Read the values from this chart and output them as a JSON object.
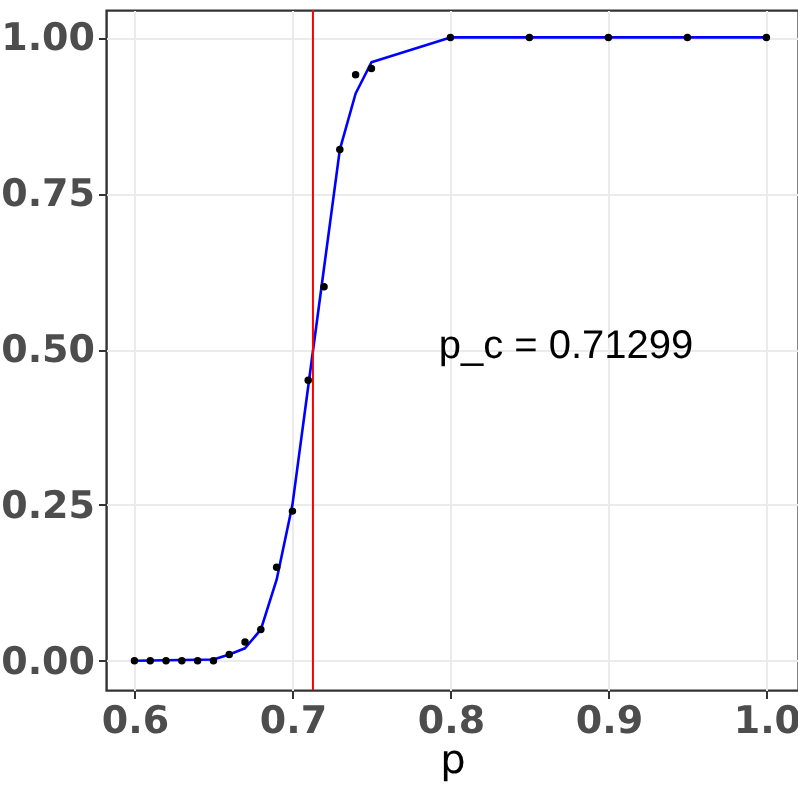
{
  "chart_data": {
    "type": "scatter",
    "xlabel": "p",
    "xlim": [
      0.582,
      1.02
    ],
    "ylim": [
      -0.047,
      1.044
    ],
    "xticks": [
      {
        "value": 0.6,
        "label": "0.6"
      },
      {
        "value": 0.7,
        "label": "0.7"
      },
      {
        "value": 0.8,
        "label": "0.8"
      },
      {
        "value": 0.9,
        "label": "0.9"
      },
      {
        "value": 1.0,
        "label": "1.0"
      }
    ],
    "yticks": [
      {
        "value": 0,
        "label": "0.00"
      },
      {
        "value": 0.25,
        "label": "0.25"
      },
      {
        "value": 0.5,
        "label": "0.50"
      },
      {
        "value": 0.75,
        "label": "0.75"
      },
      {
        "value": 1.0,
        "label": "1.00"
      }
    ],
    "grid": true,
    "series": [
      {
        "type": "line",
        "color": "#0000ff",
        "x": [
          0.6,
          0.65,
          0.66,
          0.67,
          0.68,
          0.69,
          0.7,
          0.71,
          0.72,
          0.73,
          0.74,
          0.75,
          0.8,
          0.85,
          0.9,
          0.95,
          1.0
        ],
        "values": [
          0,
          0.002,
          0.01,
          0.02,
          0.05,
          0.13,
          0.25,
          0.44,
          0.63,
          0.82,
          0.91,
          0.96,
          1,
          1,
          1,
          1,
          1
        ]
      },
      {
        "type": "scatter",
        "marker": "circle",
        "color": "#000000",
        "x": [
          0.6,
          0.61,
          0.62,
          0.63,
          0.64,
          0.65,
          0.66,
          0.67,
          0.68,
          0.69,
          0.7,
          0.71,
          0.72,
          0.73,
          0.74,
          0.75,
          0.8,
          0.85,
          0.9,
          0.95,
          1.0
        ],
        "values": [
          0,
          0,
          0,
          0,
          0,
          0,
          0.01,
          0.03,
          0.05,
          0.15,
          0.24,
          0.45,
          0.6,
          0.82,
          0.94,
          0.95,
          1,
          1,
          1,
          1,
          1
        ]
      }
    ],
    "ref_lines": [
      {
        "axis": "x",
        "value": 0.71299,
        "color": "#ff0000"
      }
    ],
    "annotations": [
      "p_c = 0.71299"
    ]
  }
}
